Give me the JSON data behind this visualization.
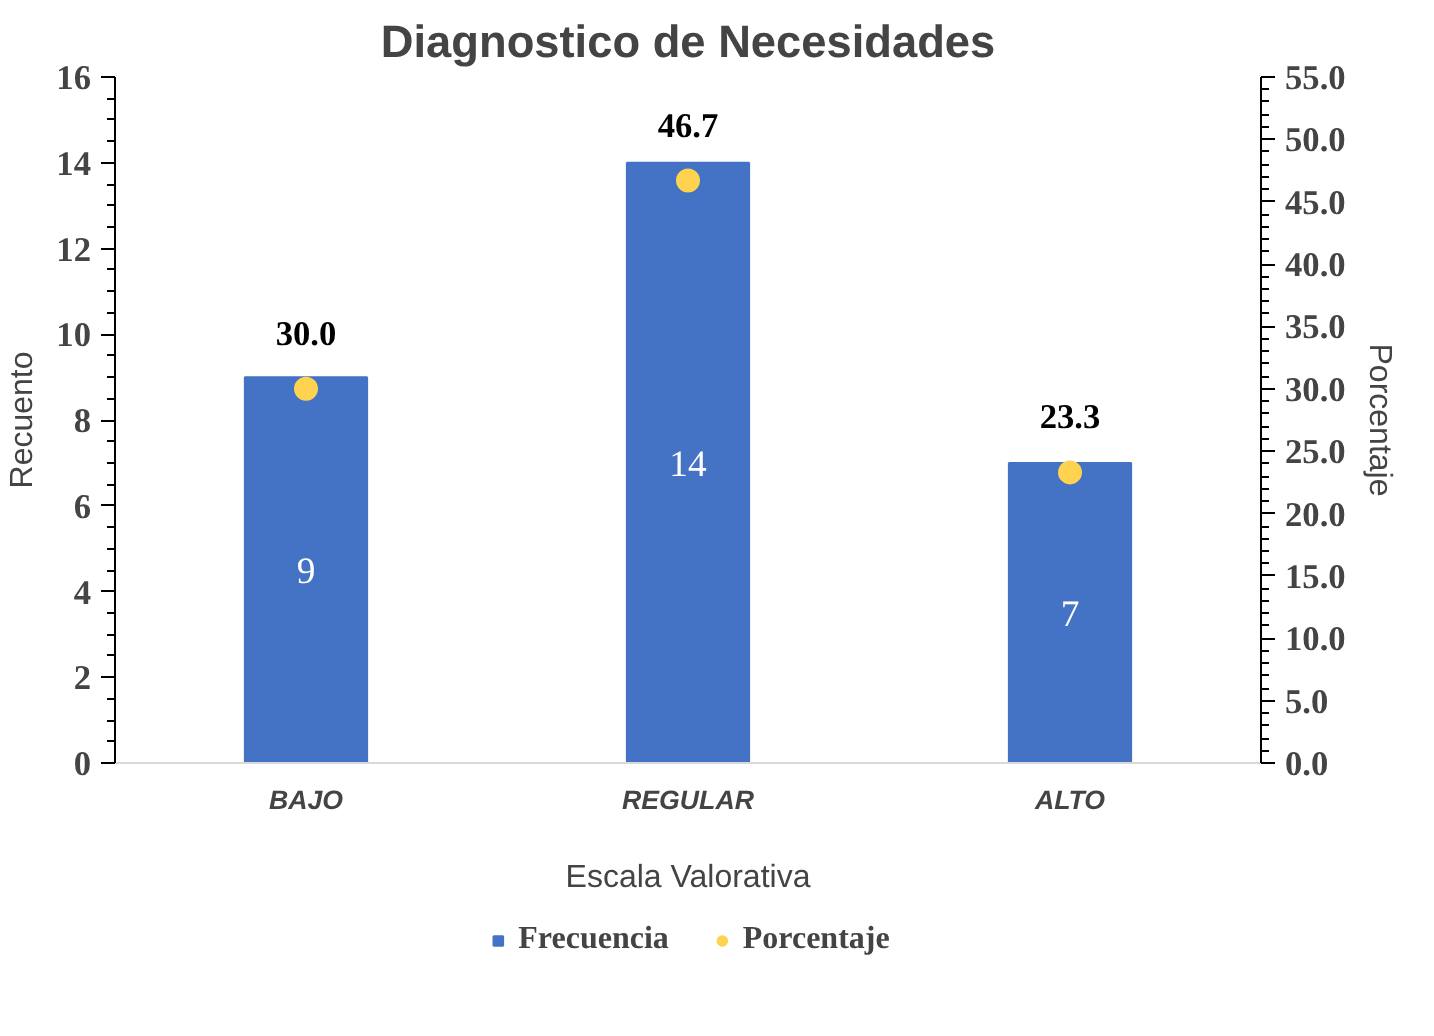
{
  "chart_data": {
    "type": "bar",
    "title": "Diagnostico de Necesidades",
    "xlabel": "Escala Valorativa",
    "ylabel": "Recuento",
    "y2label": "Porcentaje",
    "categories": [
      "BAJO",
      "REGULAR",
      "ALTO"
    ],
    "series": [
      {
        "name": "Frecuencia",
        "color": "#4472c4",
        "values": [
          9,
          14,
          7
        ],
        "value_labels": [
          "9",
          "14",
          "7"
        ]
      },
      {
        "name": "Porcentaje",
        "type": "scatter",
        "axis": "y2",
        "color": "#ffd34f",
        "values": [
          30.0,
          46.7,
          23.3
        ],
        "value_labels": [
          "30.0",
          "46.7",
          "23.3"
        ]
      }
    ],
    "ylim": [
      0,
      16
    ],
    "yticks": [
      0,
      2,
      4,
      6,
      8,
      10,
      12,
      14,
      16
    ],
    "y2lim": [
      0,
      55
    ],
    "y2ticks": [
      {
        "value": 0,
        "label": "0.0"
      },
      {
        "value": 5,
        "label": "5.0"
      },
      {
        "value": 10,
        "label": "10.0"
      },
      {
        "value": 15,
        "label": "15.0"
      },
      {
        "value": 20,
        "label": "20.0"
      },
      {
        "value": 25,
        "label": "25.0"
      },
      {
        "value": 30,
        "label": "30.0"
      },
      {
        "value": 35,
        "label": "35.0"
      },
      {
        "value": 40,
        "label": "40.0"
      },
      {
        "value": 45,
        "label": "45.0"
      },
      {
        "value": 50,
        "label": "50.0"
      },
      {
        "value": 55,
        "label": "55.0"
      }
    ],
    "grid": false,
    "legend": "bottom",
    "marker": "circle"
  }
}
